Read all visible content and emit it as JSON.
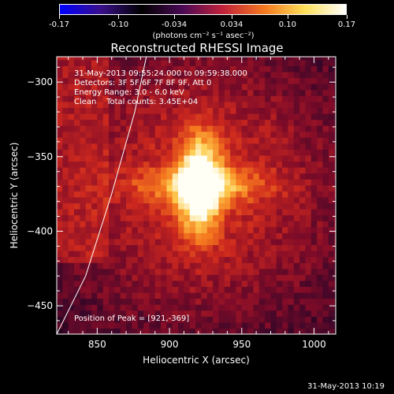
{
  "colorbar": {
    "ticks": [
      "-0.17",
      "-0.10",
      "-0.034",
      "0.034",
      "0.10",
      "0.17"
    ],
    "tick_values": [
      -0.17,
      -0.1,
      -0.034,
      0.034,
      0.1,
      0.17
    ],
    "units": "(photons cm⁻² s⁻¹ asec⁻²)",
    "colors": [
      "#0000ff",
      "#3a0f8a",
      "#000000",
      "#4b0a55",
      "#c2223b",
      "#f4781f",
      "#fde05a",
      "#ffffff"
    ]
  },
  "chart_data": {
    "type": "heatmap",
    "title": "Reconstructed RHESSI Image",
    "xlabel": "Heliocentric X (arcsec)",
    "ylabel": "Heliocentric Y (arcsec)",
    "xlim": [
      822,
      1015
    ],
    "ylim": [
      -469,
      -283
    ],
    "xticks": [
      850,
      900,
      950,
      1000
    ],
    "yticks": [
      -300,
      -350,
      -400,
      -450
    ],
    "peak": {
      "x": 921,
      "y": -369
    },
    "limb_line": [
      [
        884,
        -283
      ],
      [
        876,
        -320
      ],
      [
        860,
        -375
      ],
      [
        842,
        -430
      ],
      [
        822,
        -469
      ]
    ],
    "annotations": [
      "31-May-2013 09:55:24.000 to 09:59:38.000",
      "Detectors: 3F 5F 6F 7F 8F 9F, Att 0",
      "Energy Range: 3.0 - 6.0 keV",
      "Clean    Total counts: 3.45E+04"
    ],
    "peak_label": "Position of Peak = [921,-369]"
  },
  "footer": "31-May-2013 10:19"
}
